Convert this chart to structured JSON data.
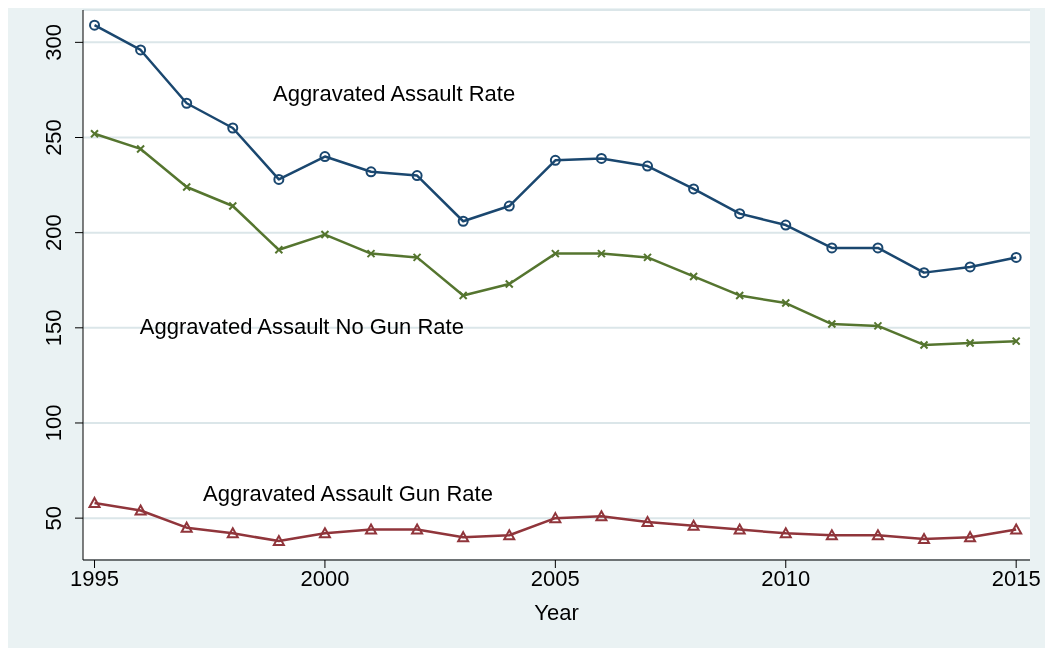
{
  "chart_data": {
    "type": "line",
    "xlabel": "Year",
    "x": [
      1995,
      1996,
      1997,
      1998,
      1999,
      2000,
      2001,
      2002,
      2003,
      2004,
      2005,
      2006,
      2007,
      2008,
      2009,
      2010,
      2011,
      2012,
      2013,
      2014,
      2015
    ],
    "series": [
      {
        "name": "Aggravated Assault Rate",
        "color": "#1a476f",
        "marker": "circle",
        "values": [
          309,
          296,
          268,
          255,
          228,
          240,
          232,
          230,
          206,
          214,
          238,
          239,
          235,
          223,
          210,
          204,
          192,
          192,
          179,
          182,
          187
        ]
      },
      {
        "name": "Aggravated Assault No Gun Rate",
        "color": "#55752f",
        "marker": "cross",
        "values": [
          252,
          244,
          224,
          214,
          191,
          199,
          189,
          187,
          167,
          173,
          189,
          189,
          187,
          177,
          167,
          163,
          152,
          151,
          141,
          142,
          143
        ]
      },
      {
        "name": "Aggravated Assault Gun Rate",
        "color": "#90353b",
        "marker": "triangle",
        "values": [
          58,
          54,
          45,
          42,
          38,
          42,
          44,
          44,
          40,
          41,
          50,
          51,
          48,
          46,
          44,
          42,
          41,
          41,
          39,
          40,
          44
        ]
      }
    ],
    "xlim": [
      1994.75,
      2015.3
    ],
    "xticks": [
      1995,
      2000,
      2005,
      2010,
      2015
    ],
    "ylim": [
      28,
      317
    ],
    "yticks": [
      50,
      100,
      150,
      200,
      250,
      300
    ],
    "grid": "y",
    "legend": false,
    "line_style": "solid"
  }
}
